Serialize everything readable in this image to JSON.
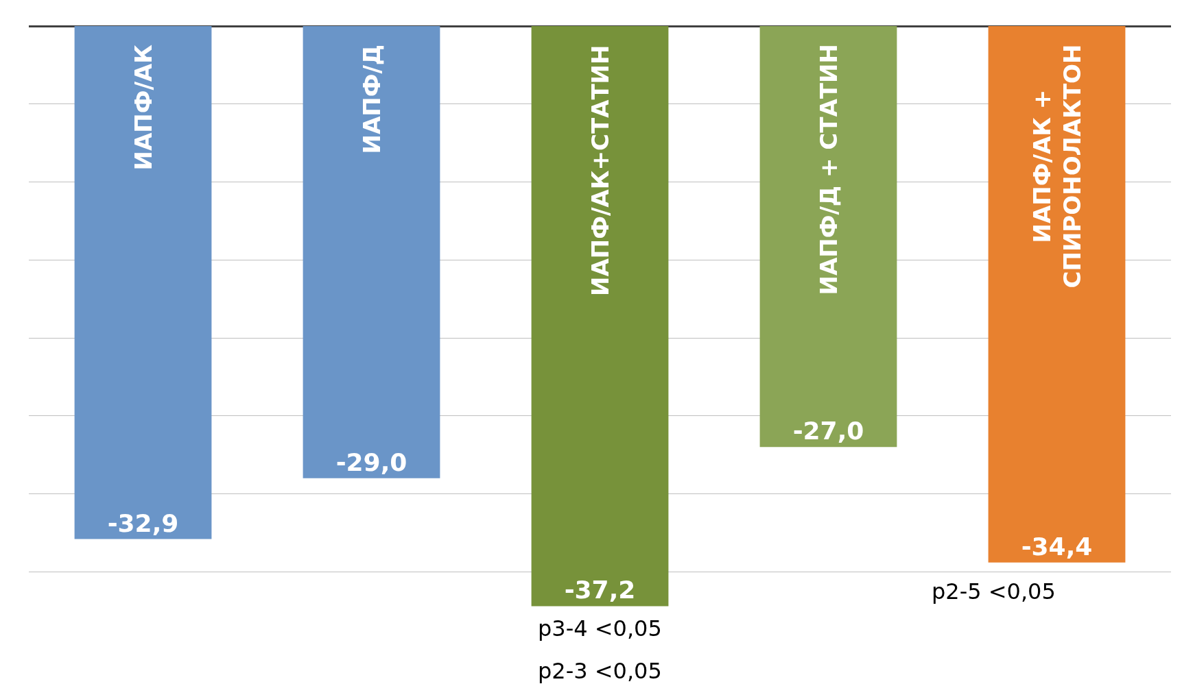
{
  "chart_data": {
    "type": "bar",
    "categories": [
      "ИАПФ/АК",
      "ИАПФ/Д",
      "ИАПФ/АК+СТАТИН",
      "ИАПФ/Д + СТАТИН",
      "ИАПФ/АК + СПИРОНОЛАКТОН"
    ],
    "values": [
      -32.9,
      -29.0,
      -37.2,
      -27.0,
      -34.4
    ],
    "colors": [
      "#6a95c8",
      "#6a95c8",
      "#77923a",
      "#8ba556",
      "#e8812f"
    ],
    "value_labels": [
      "-32,9",
      "-29,0",
      "-37,2",
      "-27,0",
      "-34,4"
    ],
    "grid": "y",
    "tick_labels": false,
    "legend": false,
    "annotations": [
      "p2-5 <0,05",
      "p3-4 <0,05",
      "p2-3 <0,05"
    ]
  }
}
